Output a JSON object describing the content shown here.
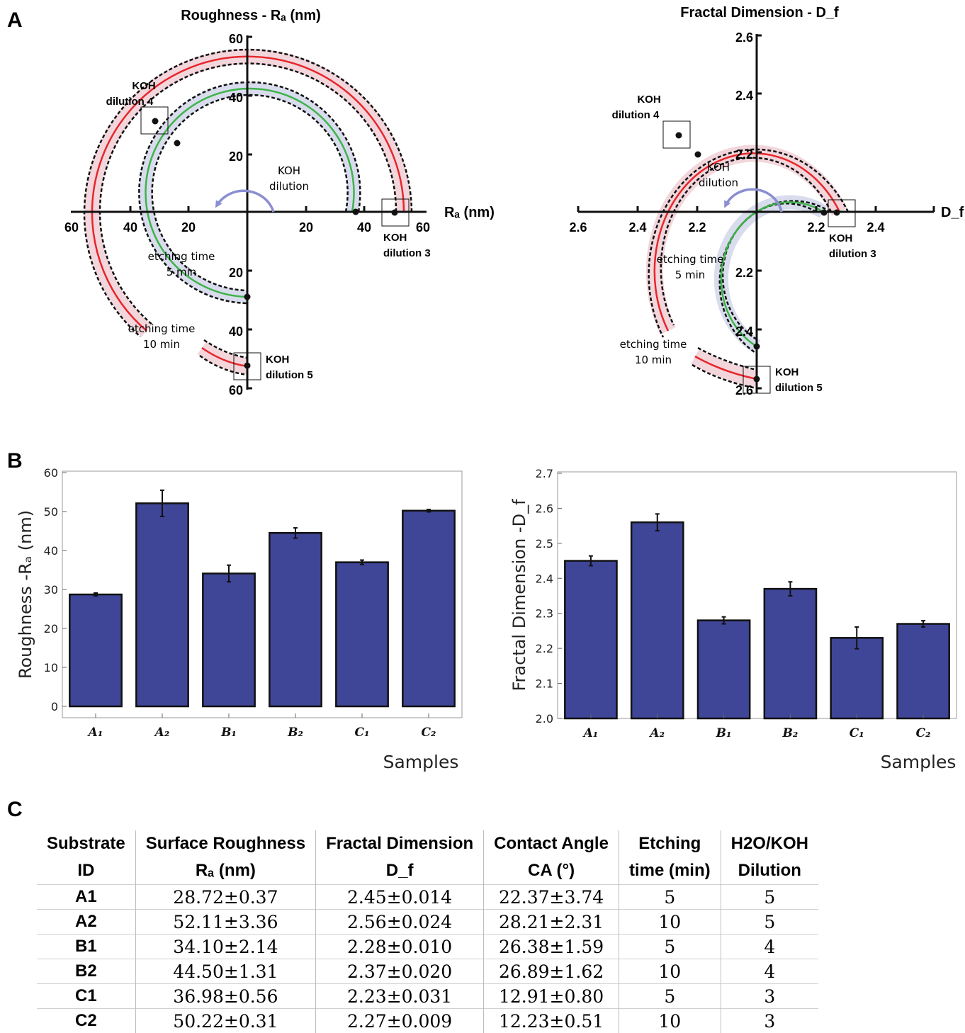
{
  "panel_labels": {
    "a": "A",
    "b": "B",
    "c": "C"
  },
  "colors": {
    "bar_fill": "#3f4697",
    "red": "#e8262a",
    "green": "#3fb34a",
    "pink_band": "#f2d6dc",
    "blue_band": "#d8dcec",
    "arrow": "#8b8ed0"
  },
  "polar_ra": {
    "title": "Roughness - Rₐ (nm)",
    "axis_label": "Rₐ (nm)",
    "x_ticks": [
      "60",
      "40",
      "20",
      "20",
      "40",
      "60"
    ],
    "y_ticks_up": [
      "60",
      "40",
      "20"
    ],
    "y_ticks_down": [
      "20",
      "40",
      "60"
    ],
    "red_radius": 44.5,
    "green_radius": 35.7,
    "points": [
      {
        "label": "KOH dilution 3",
        "value": 50.22
      },
      {
        "label": "KOH dilution 4",
        "value": 44.5
      },
      {
        "label": "KOH dilution 5",
        "value": 52.11
      }
    ],
    "annotations": {
      "koh3_a": "KOH",
      "koh3_b": "dilution 3",
      "koh4_a": "KOH",
      "koh4_b": "dilution 4",
      "koh5_a": "KOH",
      "koh5_b": "dilution 5",
      "koh_dil_a": "KOH",
      "koh_dil_b": "dilution",
      "etch5_a": "etching time",
      "etch5_b": "5 min",
      "etch10_a": "etching time",
      "etch10_b": "10 min"
    }
  },
  "polar_df": {
    "title": "Fractal Dimension - D_f",
    "axis_label": "D_f",
    "x_ticks": [
      "2.6",
      "2.4",
      "2.2",
      "2.2",
      "2.4"
    ],
    "y_ticks_up": [
      "2.6",
      "2.4",
      "2.2"
    ],
    "y_ticks_down": [
      "2.2",
      "2.4",
      "2.6"
    ],
    "annotations": {
      "koh3_a": "KOH",
      "koh3_b": "dilution 3",
      "koh4_a": "KOH",
      "koh4_b": "dilution 4",
      "koh5_a": "KOH",
      "koh5_b": "dilution 5",
      "koh_dil_a": "KOH",
      "koh_dil_b": "dilution",
      "etch5_a": "etching time",
      "etch5_b": "5 min",
      "etch10_a": "etching time",
      "etch10_b": "10 min"
    }
  },
  "chart_data": [
    {
      "type": "bar",
      "ylabel": "Roughness -Rₐ (nm)",
      "xlabel": "Samples",
      "categories": [
        "A₁",
        "A₂",
        "B₁",
        "B₂",
        "C₁",
        "C₂"
      ],
      "values": [
        28.72,
        52.11,
        34.1,
        44.5,
        36.98,
        50.22
      ],
      "errors": [
        0.37,
        3.36,
        2.14,
        1.31,
        0.56,
        0.31
      ],
      "ylim": [
        0,
        60
      ],
      "yticks": [
        "0",
        "10",
        "20",
        "30",
        "40",
        "50",
        "60"
      ]
    },
    {
      "type": "bar",
      "ylabel": "Fractal Dimension -D_f",
      "xlabel": "Samples",
      "categories": [
        "A₁",
        "A₂",
        "B₁",
        "B₂",
        "C₁",
        "C₂"
      ],
      "values": [
        2.45,
        2.56,
        2.28,
        2.37,
        2.23,
        2.27
      ],
      "errors": [
        0.014,
        0.024,
        0.01,
        0.02,
        0.031,
        0.009
      ],
      "ylim": [
        2.0,
        2.7
      ],
      "yticks": [
        "2.0",
        "2.1",
        "2.2",
        "2.3",
        "2.4",
        "2.5",
        "2.6",
        "2.7"
      ]
    },
    {
      "type": "table",
      "headers": [
        [
          "Substrate",
          "ID"
        ],
        [
          "Surface Roughness",
          "Rₐ (nm)"
        ],
        [
          "Fractal Dimension",
          "D_f"
        ],
        [
          "Contact Angle",
          "CA (°)"
        ],
        [
          "Etching",
          "time (min)"
        ],
        [
          "H2O/KOH",
          "Dilution"
        ]
      ],
      "rows": [
        [
          "A1",
          "28.72±0.37",
          "2.45±0.014",
          "22.37±3.74",
          "5",
          "5"
        ],
        [
          "A2",
          "52.11±3.36",
          "2.56±0.024",
          "28.21±2.31",
          "10",
          "5"
        ],
        [
          "B1",
          "34.10±2.14",
          "2.28±0.010",
          "26.38±1.59",
          "5",
          "4"
        ],
        [
          "B2",
          "44.50±1.31",
          "2.37±0.020",
          "26.89±1.62",
          "10",
          "4"
        ],
        [
          "C1",
          "36.98±0.56",
          "2.23±0.031",
          "12.91±0.80",
          "5",
          "3"
        ],
        [
          "C2",
          "50.22±0.31",
          "2.27±0.009",
          "12.23±0.51",
          "10",
          "3"
        ]
      ]
    }
  ]
}
